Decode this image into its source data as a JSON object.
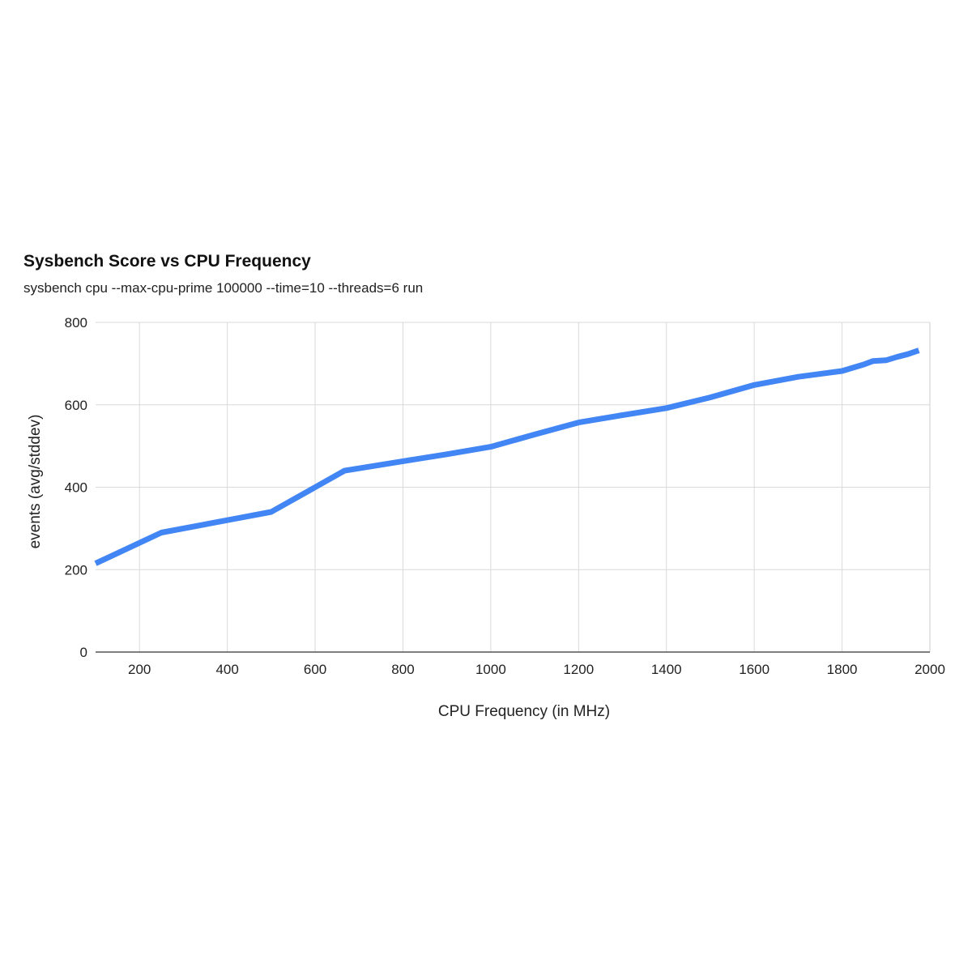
{
  "chart_data": {
    "type": "line",
    "title": "Sysbench Score vs CPU Frequency",
    "subtitle": "sysbench cpu --max-cpu-prime 100000 --time=10 --threads=6 run",
    "xlabel": "CPU Frequency (in MHz)",
    "ylabel": "events (avg/stddev)",
    "xlim": [
      100,
      2000
    ],
    "ylim": [
      0,
      800
    ],
    "x_ticks": [
      200,
      400,
      600,
      800,
      1000,
      1200,
      1400,
      1600,
      1800,
      2000
    ],
    "y_ticks": [
      0,
      200,
      400,
      600,
      800
    ],
    "grid": true,
    "legend": "none",
    "series": [
      {
        "color": "#4285f4",
        "x": [
          100,
          250,
          400,
          500,
          600,
          667,
          800,
          900,
          1000,
          1100,
          1200,
          1300,
          1400,
          1500,
          1600,
          1700,
          1800,
          1850,
          1870,
          1900,
          1925,
          1950,
          1975
        ],
        "y": [
          215,
          290,
          320,
          340,
          400,
          440,
          463,
          480,
          498,
          528,
          557,
          575,
          592,
          618,
          648,
          668,
          682,
          698,
          706,
          708,
          716,
          723,
          732
        ]
      }
    ]
  }
}
